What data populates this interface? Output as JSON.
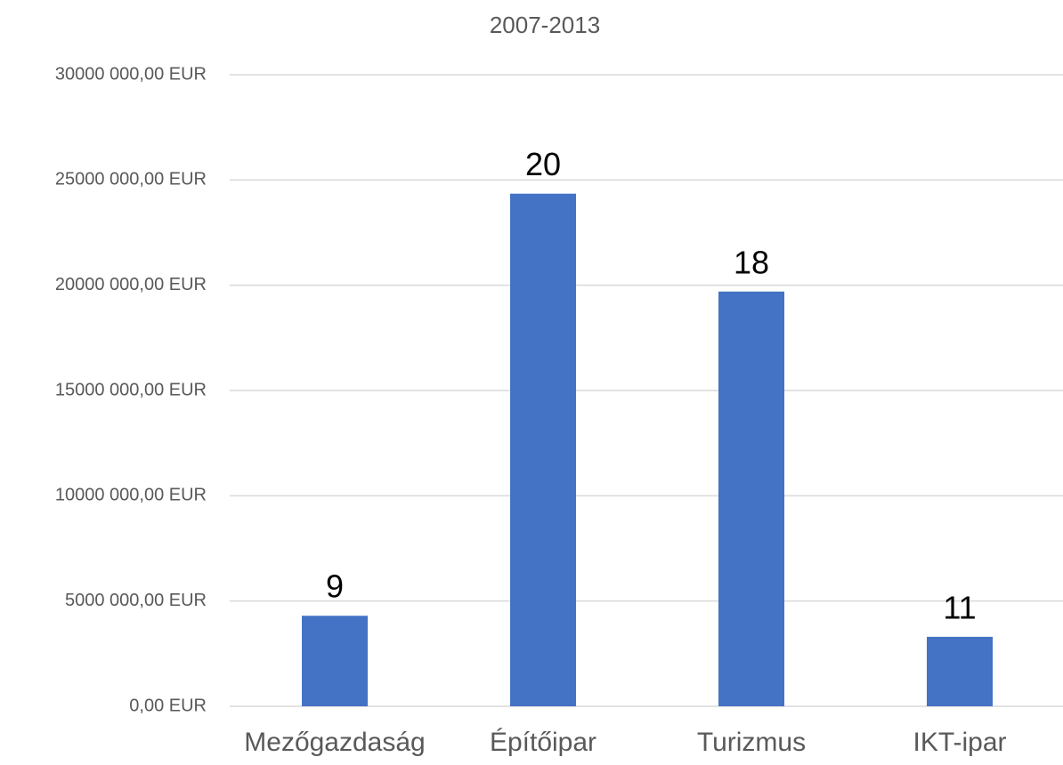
{
  "chart_data": {
    "type": "bar",
    "title": "2007-2013",
    "categories": [
      "Mezőgazdaság",
      "Építőipar",
      "Turizmus",
      "IKT-ipar"
    ],
    "values": [
      4300000,
      24350000,
      19700000,
      3300000
    ],
    "bar_labels": [
      9,
      20,
      18,
      11
    ],
    "color": "#4472c4",
    "ylim": [
      0,
      30000000
    ],
    "yticks": [
      {
        "value": 0,
        "label": "0,00 EUR"
      },
      {
        "value": 5000000,
        "label": "5000 000,00 EUR"
      },
      {
        "value": 10000000,
        "label": "10000 000,00 EUR"
      },
      {
        "value": 15000000,
        "label": "15000 000,00 EUR"
      },
      {
        "value": 20000000,
        "label": "20000 000,00 EUR"
      },
      {
        "value": 25000000,
        "label": "25000 000,00 EUR"
      },
      {
        "value": 30000000,
        "label": "30000 000,00 EUR"
      }
    ],
    "grid": true
  }
}
